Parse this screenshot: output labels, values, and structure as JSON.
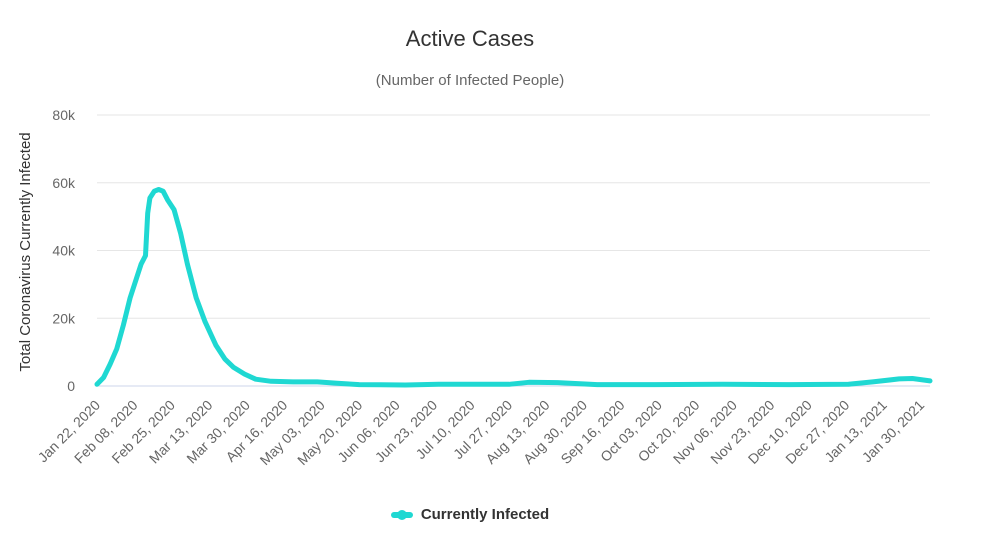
{
  "chart_data": {
    "type": "line",
    "title": "Active Cases",
    "subtitle": "(Number of Infected People)",
    "ylabel": "Total Coronavirus Currently Infected",
    "xlabel": "",
    "ylim": [
      0,
      80000
    ],
    "y_ticks": [
      0,
      20000,
      40000,
      60000,
      80000
    ],
    "y_tick_labels": [
      "0",
      "20k",
      "40k",
      "60k",
      "80k"
    ],
    "x_tick_labels": [
      "Jan 22, 2020",
      "Feb 08, 2020",
      "Feb 25, 2020",
      "Mar 13, 2020",
      "Mar 30, 2020",
      "Apr 16, 2020",
      "May 03, 2020",
      "May 20, 2020",
      "Jun 06, 2020",
      "Jun 23, 2020",
      "Jul 10, 2020",
      "Jul 27, 2020",
      "Aug 13, 2020",
      "Aug 30, 2020",
      "Sep 16, 2020",
      "Oct 03, 2020",
      "Oct 20, 2020",
      "Nov 06, 2020",
      "Nov 23, 2020",
      "Dec 10, 2020",
      "Dec 27, 2020",
      "Jan 13, 2021",
      "Jan 30, 2021"
    ],
    "x_range_days": [
      0,
      378
    ],
    "grid": true,
    "legend_position": "bottom-center",
    "series": [
      {
        "name": "Currently Infected",
        "color": "#1fd8d2",
        "points": [
          [
            "2020-01-22",
            500
          ],
          [
            "2020-01-25",
            2500
          ],
          [
            "2020-01-28",
            6500
          ],
          [
            "2020-01-31",
            11000
          ],
          [
            "2020-02-03",
            18000
          ],
          [
            "2020-02-06",
            26000
          ],
          [
            "2020-02-09",
            32000
          ],
          [
            "2020-02-11",
            36000
          ],
          [
            "2020-02-13",
            38500
          ],
          [
            "2020-02-14",
            51000
          ],
          [
            "2020-02-15",
            55500
          ],
          [
            "2020-02-17",
            57500
          ],
          [
            "2020-02-19",
            58000
          ],
          [
            "2020-02-21",
            57500
          ],
          [
            "2020-02-23",
            55000
          ],
          [
            "2020-02-26",
            52000
          ],
          [
            "2020-02-29",
            45000
          ],
          [
            "2020-03-03",
            36000
          ],
          [
            "2020-03-07",
            26000
          ],
          [
            "2020-03-11",
            19000
          ],
          [
            "2020-03-16",
            12000
          ],
          [
            "2020-03-20",
            8000
          ],
          [
            "2020-03-24",
            5500
          ],
          [
            "2020-03-29",
            3500
          ],
          [
            "2020-04-03",
            2000
          ],
          [
            "2020-04-10",
            1400
          ],
          [
            "2020-04-20",
            1200
          ],
          [
            "2020-05-01",
            1200
          ],
          [
            "2020-05-10",
            800
          ],
          [
            "2020-05-20",
            400
          ],
          [
            "2020-06-10",
            300
          ],
          [
            "2020-06-25",
            500
          ],
          [
            "2020-07-15",
            500
          ],
          [
            "2020-07-27",
            500
          ],
          [
            "2020-08-05",
            1100
          ],
          [
            "2020-08-18",
            1000
          ],
          [
            "2020-09-05",
            400
          ],
          [
            "2020-10-01",
            400
          ],
          [
            "2020-11-01",
            500
          ],
          [
            "2020-12-01",
            400
          ],
          [
            "2020-12-28",
            500
          ],
          [
            "2021-01-08",
            1200
          ],
          [
            "2021-01-20",
            2100
          ],
          [
            "2021-01-26",
            2200
          ],
          [
            "2021-02-03",
            1500
          ]
        ]
      }
    ]
  }
}
